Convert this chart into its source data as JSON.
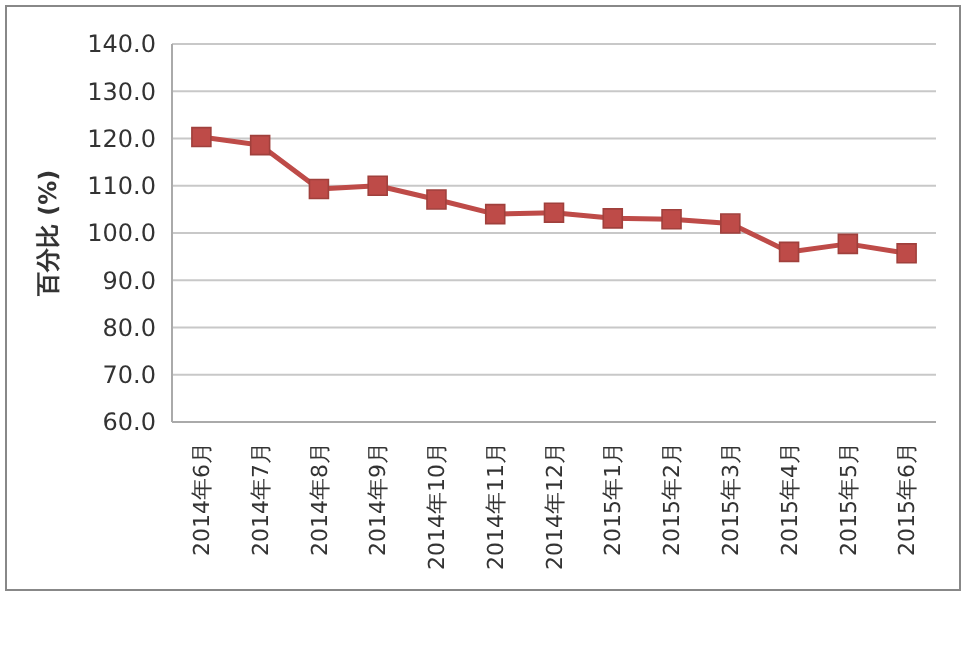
{
  "chart_data": {
    "type": "line",
    "ylabel": "百分比 (%)",
    "categories": [
      "2014年6月",
      "2014年7月",
      "2014年8月",
      "2014年9月",
      "2014年10月",
      "2014年11月",
      "2014年12月",
      "2015年1月",
      "2015年2月",
      "2015年3月",
      "2015年4月",
      "2015年5月",
      "2015年6月"
    ],
    "series": [
      {
        "color": "#be4b48",
        "values": [
          120.3,
          118.6,
          109.3,
          110,
          107.1,
          104,
          104.3,
          103.1,
          102.9,
          102,
          96,
          97.7,
          95.7
        ]
      }
    ],
    "ylim": [
      60,
      140
    ],
    "yticks": [
      {
        "value": 60,
        "label": "60.0"
      },
      {
        "value": 70,
        "label": "70.0"
      },
      {
        "value": 80,
        "label": "80.0"
      },
      {
        "value": 90,
        "label": "90.0"
      },
      {
        "value": 100,
        "label": "100.0"
      },
      {
        "value": 110,
        "label": "110.0"
      },
      {
        "value": 120,
        "label": "120.0"
      },
      {
        "value": 130,
        "label": "130.0"
      },
      {
        "value": 140,
        "label": "140.0"
      }
    ],
    "grid": "y",
    "marker": "square"
  }
}
